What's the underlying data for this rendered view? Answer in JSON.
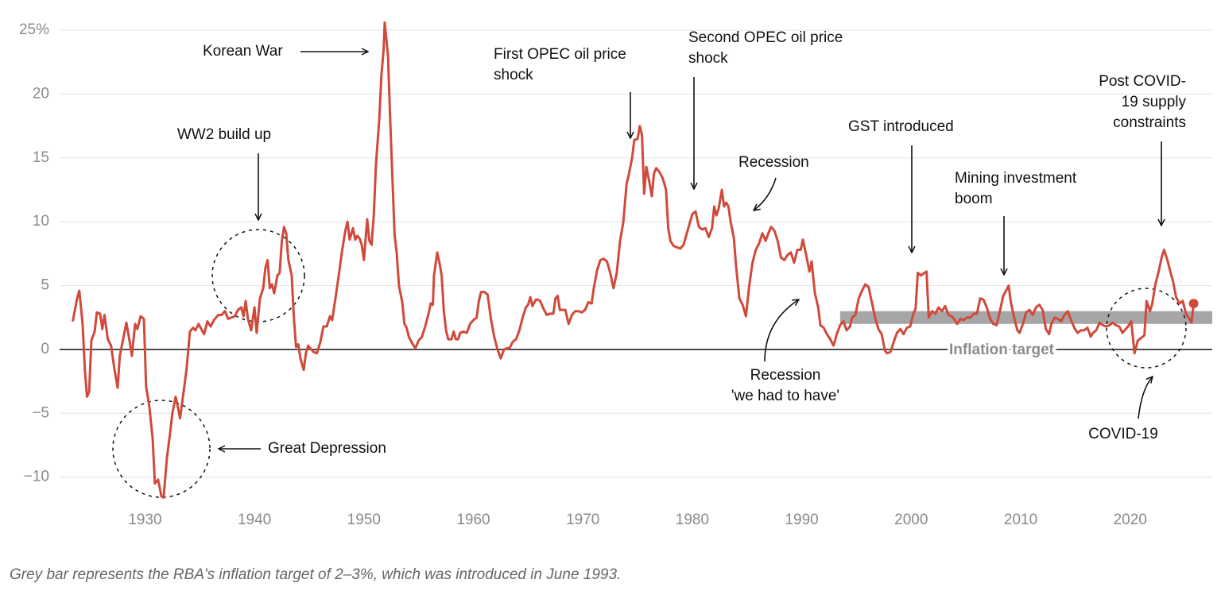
{
  "chart_data": {
    "type": "line",
    "color": "#d04a3b",
    "grid": true,
    "xlim": [
      1922.2,
      2027.5
    ],
    "ylim": [
      -11.7,
      26
    ],
    "xticks": [
      1930,
      1940,
      1950,
      1960,
      1970,
      1980,
      1990,
      2000,
      2010,
      2020
    ],
    "yticks": [
      {
        "value": -10,
        "label": "−10"
      },
      {
        "value": -5,
        "label": "−5"
      },
      0,
      5,
      10,
      15,
      20,
      {
        "value": 25,
        "label": "25%"
      }
    ],
    "x": [
      1923.4,
      1923.8,
      1924.0,
      1924.3,
      1924.5,
      1924.7,
      1924.9,
      1925.1,
      1925.4,
      1925.6,
      1925.9,
      1926.1,
      1926.3,
      1926.6,
      1926.9,
      1927.2,
      1927.5,
      1927.7,
      1928.0,
      1928.3,
      1928.6,
      1928.8,
      1929.1,
      1929.3,
      1929.6,
      1929.9,
      1930.1,
      1930.4,
      1930.7,
      1930.9,
      1931.2,
      1931.5,
      1931.7,
      1932.0,
      1932.3,
      1932.5,
      1932.8,
      1933.0,
      1933.2,
      1933.5,
      1933.8,
      1934.1,
      1934.4,
      1934.6,
      1934.9,
      1935.2,
      1935.4,
      1935.7,
      1936.0,
      1936.3,
      1936.7,
      1937.0,
      1937.3,
      1937.6,
      1937.9,
      1938.2,
      1938.5,
      1938.8,
      1939.0,
      1939.2,
      1939.4,
      1939.7,
      1940.0,
      1940.2,
      1940.5,
      1940.8,
      1941.0,
      1941.2,
      1941.4,
      1941.6,
      1941.8,
      1942.1,
      1942.3,
      1942.5,
      1942.7,
      1942.9,
      1943.1,
      1943.4,
      1943.6,
      1943.8,
      1944.0,
      1944.2,
      1944.5,
      1944.7,
      1944.9,
      1945.1,
      1945.4,
      1945.7,
      1946.0,
      1946.3,
      1946.6,
      1946.9,
      1947.1,
      1947.4,
      1947.7,
      1948.0,
      1948.3,
      1948.5,
      1948.7,
      1949.0,
      1949.2,
      1949.4,
      1949.6,
      1949.8,
      1950.0,
      1950.3,
      1950.5,
      1950.7,
      1950.9,
      1951.1,
      1951.4,
      1951.6,
      1951.8,
      1951.9,
      1952.2,
      1952.4,
      1952.6,
      1952.8,
      1953.0,
      1953.2,
      1953.5,
      1953.7,
      1953.9,
      1954.1,
      1954.4,
      1954.7,
      1955.0,
      1955.3,
      1955.6,
      1955.9,
      1956.1,
      1956.3,
      1956.4,
      1956.7,
      1956.9,
      1957.1,
      1957.3,
      1957.5,
      1957.7,
      1958.0,
      1958.2,
      1958.4,
      1958.6,
      1958.8,
      1959.1,
      1959.4,
      1959.7,
      1960.0,
      1960.3,
      1960.5,
      1960.7,
      1961.0,
      1961.3,
      1961.6,
      1961.9,
      1962.2,
      1962.5,
      1962.8,
      1963.1,
      1963.3,
      1963.6,
      1963.9,
      1964.2,
      1964.5,
      1964.8,
      1965.0,
      1965.2,
      1965.4,
      1965.7,
      1965.9,
      1966.1,
      1966.4,
      1966.7,
      1967.0,
      1967.3,
      1967.5,
      1967.7,
      1967.9,
      1968.1,
      1968.4,
      1968.7,
      1969.0,
      1969.3,
      1969.6,
      1969.9,
      1970.2,
      1970.5,
      1970.8,
      1971.0,
      1971.3,
      1971.6,
      1971.9,
      1972.2,
      1972.5,
      1972.8,
      1973.1,
      1973.4,
      1973.7,
      1974.0,
      1974.2,
      1974.5,
      1974.7,
      1975.0,
      1975.2,
      1975.4,
      1975.6,
      1975.8,
      1976.1,
      1976.3,
      1976.5,
      1976.7,
      1977.0,
      1977.3,
      1977.6,
      1977.8,
      1978.0,
      1978.3,
      1978.6,
      1978.9,
      1979.2,
      1979.5,
      1979.8,
      1980.0,
      1980.3,
      1980.6,
      1980.9,
      1981.2,
      1981.5,
      1981.8,
      1982.0,
      1982.2,
      1982.4,
      1982.7,
      1982.9,
      1983.1,
      1983.3,
      1983.5,
      1983.8,
      1984.0,
      1984.3,
      1984.6,
      1984.9,
      1985.2,
      1985.5,
      1985.8,
      1986.1,
      1986.4,
      1986.7,
      1986.9,
      1987.2,
      1987.5,
      1987.8,
      1988.1,
      1988.4,
      1988.7,
      1989.0,
      1989.3,
      1989.6,
      1989.9,
      1990.1,
      1990.4,
      1990.7,
      1990.9,
      1991.2,
      1991.5,
      1991.7,
      1992.0,
      1992.3,
      1992.6,
      1992.9,
      1993.2,
      1993.5,
      1993.8,
      1994.1,
      1994.4,
      1994.6,
      1994.9,
      1995.2,
      1995.5,
      1995.8,
      1996.1,
      1996.4,
      1996.7,
      1997.0,
      1997.3,
      1997.6,
      1997.8,
      1998.1,
      1998.4,
      1998.7,
      1999.0,
      1999.3,
      1999.6,
      1999.9,
      2000.2,
      2000.4,
      2000.6,
      2000.9,
      2001.2,
      2001.4,
      2001.6,
      2001.9,
      2002.2,
      2002.5,
      2002.8,
      2003.1,
      2003.4,
      2003.7,
      2003.9,
      2004.2,
      2004.5,
      2004.8,
      2005.1,
      2005.4,
      2005.7,
      2006.0,
      2006.3,
      2006.6,
      2006.9,
      2007.2,
      2007.5,
      2007.8,
      2008.1,
      2008.4,
      2008.6,
      2008.9,
      2009.1,
      2009.4,
      2009.7,
      2009.9,
      2010.2,
      2010.5,
      2010.8,
      2011.1,
      2011.4,
      2011.7,
      2012.0,
      2012.3,
      2012.6,
      2012.8,
      2013.1,
      2013.4,
      2013.7,
      2014.0,
      2014.3,
      2014.6,
      2014.9,
      2015.2,
      2015.5,
      2015.8,
      2016.1,
      2016.4,
      2016.6,
      2016.9,
      2017.2,
      2017.5,
      2017.8,
      2018.1,
      2018.4,
      2018.7,
      2019.0,
      2019.3,
      2019.6,
      2019.8,
      2020.1,
      2020.4,
      2020.7,
      2021.0,
      2021.3,
      2021.5,
      2021.8,
      2022.0,
      2022.3,
      2022.6,
      2022.9,
      2023.1,
      2023.4,
      2023.7,
      2023.9,
      2024.2,
      2024.5,
      2024.8,
      2025.1,
      2025.4,
      2025.6,
      2025.8
    ],
    "values": [
      2.2,
      4.0,
      4.6,
      2.0,
      -1.5,
      -3.7,
      -3.3,
      0.7,
      1.4,
      2.9,
      2.8,
      1.6,
      2.7,
      0.8,
      0.3,
      -1.5,
      -3.0,
      -0.5,
      0.8,
      2.1,
      0.6,
      -0.5,
      2.0,
      1.6,
      2.6,
      2.4,
      -2.9,
      -4.5,
      -7.0,
      -10.5,
      -10.2,
      -11.5,
      -11.6,
      -8.5,
      -6.5,
      -5.0,
      -3.7,
      -4.5,
      -5.4,
      -3.5,
      -1.5,
      1.4,
      1.7,
      1.5,
      2.0,
      1.5,
      1.2,
      2.2,
      1.8,
      2.3,
      2.7,
      2.7,
      3.0,
      2.4,
      2.5,
      2.6,
      3.1,
      3.3,
      2.6,
      3.8,
      2.4,
      1.5,
      3.3,
      1.3,
      4.0,
      4.8,
      6.4,
      7.0,
      4.8,
      5.1,
      4.4,
      5.8,
      6.0,
      8.5,
      9.6,
      9.1,
      7.0,
      5.8,
      2.5,
      0.2,
      0.4,
      -0.7,
      -1.6,
      -0.3,
      0.3,
      0.1,
      -0.2,
      -0.3,
      0.5,
      1.8,
      1.8,
      2.6,
      2.3,
      4.0,
      5.8,
      7.7,
      9.3,
      10.0,
      8.6,
      9.5,
      8.6,
      8.9,
      8.7,
      8.2,
      7.0,
      10.2,
      8.5,
      8.2,
      10.5,
      14.5,
      18.0,
      21.5,
      23.5,
      25.6,
      23.0,
      18.0,
      13.5,
      9.0,
      7.5,
      5.0,
      3.7,
      2.0,
      1.7,
      1.0,
      0.5,
      0.1,
      0.7,
      1.0,
      1.8,
      2.8,
      3.6,
      3.5,
      5.8,
      7.6,
      6.8,
      5.8,
      3.0,
      1.5,
      0.8,
      0.8,
      1.4,
      0.8,
      0.8,
      1.3,
      1.4,
      1.3,
      2.0,
      2.3,
      2.5,
      3.8,
      4.5,
      4.5,
      4.3,
      2.4,
      1.0,
      0.0,
      -0.7,
      0.0,
      0.1,
      0.1,
      0.6,
      0.8,
      1.5,
      2.5,
      3.3,
      3.5,
      4.1,
      3.4,
      3.9,
      3.9,
      3.8,
      3.2,
      2.7,
      2.8,
      2.8,
      4.0,
      4.2,
      3.1,
      3.1,
      3.1,
      2.0,
      2.7,
      3.0,
      3.0,
      2.9,
      3.1,
      3.7,
      3.6,
      4.8,
      6.2,
      7.0,
      7.1,
      6.9,
      6.0,
      4.8,
      6.0,
      8.5,
      10.0,
      13.0,
      13.7,
      15.0,
      16.4,
      16.5,
      17.5,
      16.8,
      12.2,
      14.3,
      13.0,
      12.0,
      13.8,
      14.2,
      13.9,
      13.4,
      12.5,
      9.5,
      8.5,
      8.1,
      8.0,
      7.9,
      8.2,
      9.1,
      10.0,
      10.6,
      10.8,
      9.6,
      9.4,
      9.5,
      8.8,
      9.5,
      11.2,
      10.5,
      11.0,
      12.5,
      11.2,
      11.5,
      11.2,
      10.0,
      8.7,
      6.5,
      4.0,
      3.5,
      2.6,
      5.0,
      6.8,
      7.8,
      8.3,
      9.1,
      8.5,
      9.0,
      9.6,
      9.3,
      8.5,
      7.2,
      7.0,
      7.4,
      7.6,
      6.8,
      7.8,
      7.8,
      8.6,
      7.4,
      6.1,
      6.9,
      4.4,
      3.3,
      1.9,
      1.7,
      1.2,
      0.8,
      0.3,
      1.2,
      1.9,
      2.2,
      1.5,
      1.8,
      2.5,
      2.7,
      4.0,
      4.6,
      5.1,
      4.9,
      3.7,
      2.5,
      1.6,
      1.2,
      -0.1,
      -0.3,
      -0.2,
      0.6,
      1.3,
      1.6,
      1.2,
      1.7,
      1.8,
      2.8,
      3.2,
      6.0,
      5.8,
      6.0,
      6.1,
      2.5,
      3.0,
      2.8,
      3.3,
      3.0,
      3.4,
      2.7,
      2.6,
      2.4,
      2.0,
      2.4,
      2.3,
      2.5,
      2.5,
      2.8,
      2.8,
      4.0,
      3.9,
      3.3,
      2.4,
      2.0,
      1.9,
      3.0,
      4.2,
      4.5,
      5.0,
      3.7,
      2.5,
      1.5,
      1.3,
      2.0,
      2.9,
      3.1,
      2.7,
      3.3,
      3.5,
      3.1,
      1.6,
      1.2,
      2.0,
      2.5,
      2.4,
      2.2,
      2.7,
      3.0,
      2.3,
      1.7,
      1.3,
      1.5,
      1.5,
      1.7,
      1.0,
      1.3,
      1.5,
      2.1,
      1.9,
      1.8,
      1.9,
      2.1,
      1.9,
      1.8,
      1.3,
      1.6,
      1.8,
      2.2,
      -0.3,
      0.7,
      0.9,
      1.1,
      3.8,
      3.0,
      3.5,
      5.1,
      6.1,
      7.3,
      7.8,
      7.0,
      6.0,
      5.4,
      4.1,
      3.6,
      3.8,
      2.8,
      2.4,
      2.1,
      3.6
    ],
    "target_band": {
      "xlim": [
        1993.5,
        2027.5
      ],
      "ylim": [
        2,
        3
      ],
      "color": "#a6a6a6",
      "label": "Inflation target"
    },
    "annotations": [
      {
        "lines": [
          "Korean War"
        ]
      },
      {
        "lines": [
          "WW2 build up"
        ]
      },
      {
        "lines": [
          "Great Depression"
        ]
      },
      {
        "lines": [
          "First OPEC oil price",
          "shock"
        ]
      },
      {
        "lines": [
          "Second OPEC oil price",
          "shock"
        ]
      },
      {
        "lines": [
          "Recession"
        ]
      },
      {
        "lines": [
          "GST introduced"
        ]
      },
      {
        "lines": [
          "Mining investment",
          "boom"
        ]
      },
      {
        "lines": [
          "Post COVID-",
          "19 supply",
          "constraints"
        ]
      },
      {
        "lines": [
          "Recession",
          "'we had to have'"
        ]
      },
      {
        "lines": [
          "COVID-19"
        ]
      }
    ],
    "caption": "Grey bar represents the RBA's inflation target of 2–3%, which was introduced in June 1993."
  }
}
